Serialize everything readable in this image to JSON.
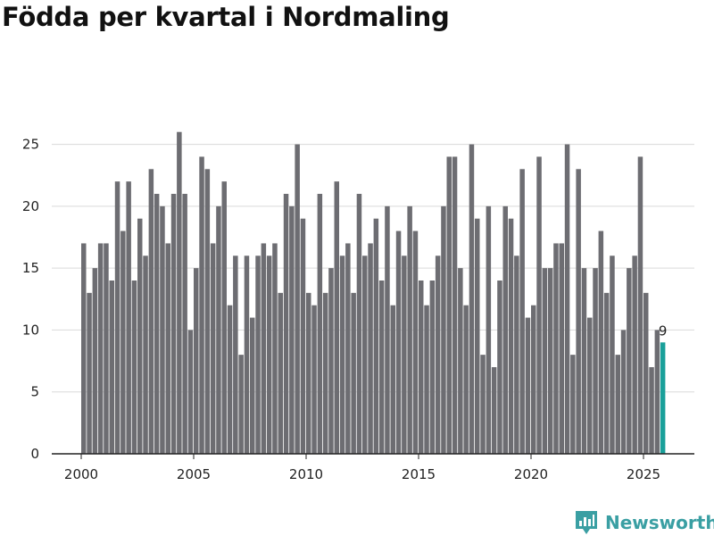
{
  "title": "Födda per kvartal i Nordmaling",
  "brand": {
    "name": "Newsworthy",
    "icon": "newsworthy-logo-icon"
  },
  "chart_data": {
    "type": "bar",
    "title": "Födda per kvartal i Nordmaling",
    "xlabel": "",
    "ylabel": "",
    "x_start": 2000,
    "x_ticks": [
      2000,
      2005,
      2010,
      2015,
      2020,
      2025
    ],
    "y_ticks": [
      0,
      5,
      10,
      15,
      20,
      25
    ],
    "ylim": [
      0,
      28
    ],
    "grid": true,
    "bar_color": "#6d6d72",
    "highlight_color": "#1aa09a",
    "highlight_label": "9",
    "values": [
      17,
      13,
      15,
      17,
      17,
      14,
      22,
      18,
      22,
      14,
      19,
      16,
      23,
      21,
      20,
      17,
      21,
      26,
      21,
      10,
      15,
      24,
      23,
      17,
      20,
      22,
      12,
      16,
      8,
      16,
      11,
      16,
      17,
      16,
      17,
      13,
      21,
      20,
      25,
      19,
      13,
      12,
      21,
      13,
      15,
      22,
      16,
      17,
      13,
      21,
      16,
      17,
      19,
      14,
      20,
      12,
      18,
      16,
      20,
      18,
      14,
      12,
      14,
      16,
      20,
      24,
      24,
      15,
      12,
      25,
      19,
      8,
      20,
      7,
      14,
      20,
      19,
      16,
      23,
      11,
      12,
      24,
      15,
      15,
      17,
      17,
      25,
      8,
      23,
      15,
      11,
      15,
      18,
      13,
      16,
      8,
      10,
      15,
      16,
      24,
      13,
      7,
      10,
      9
    ]
  }
}
